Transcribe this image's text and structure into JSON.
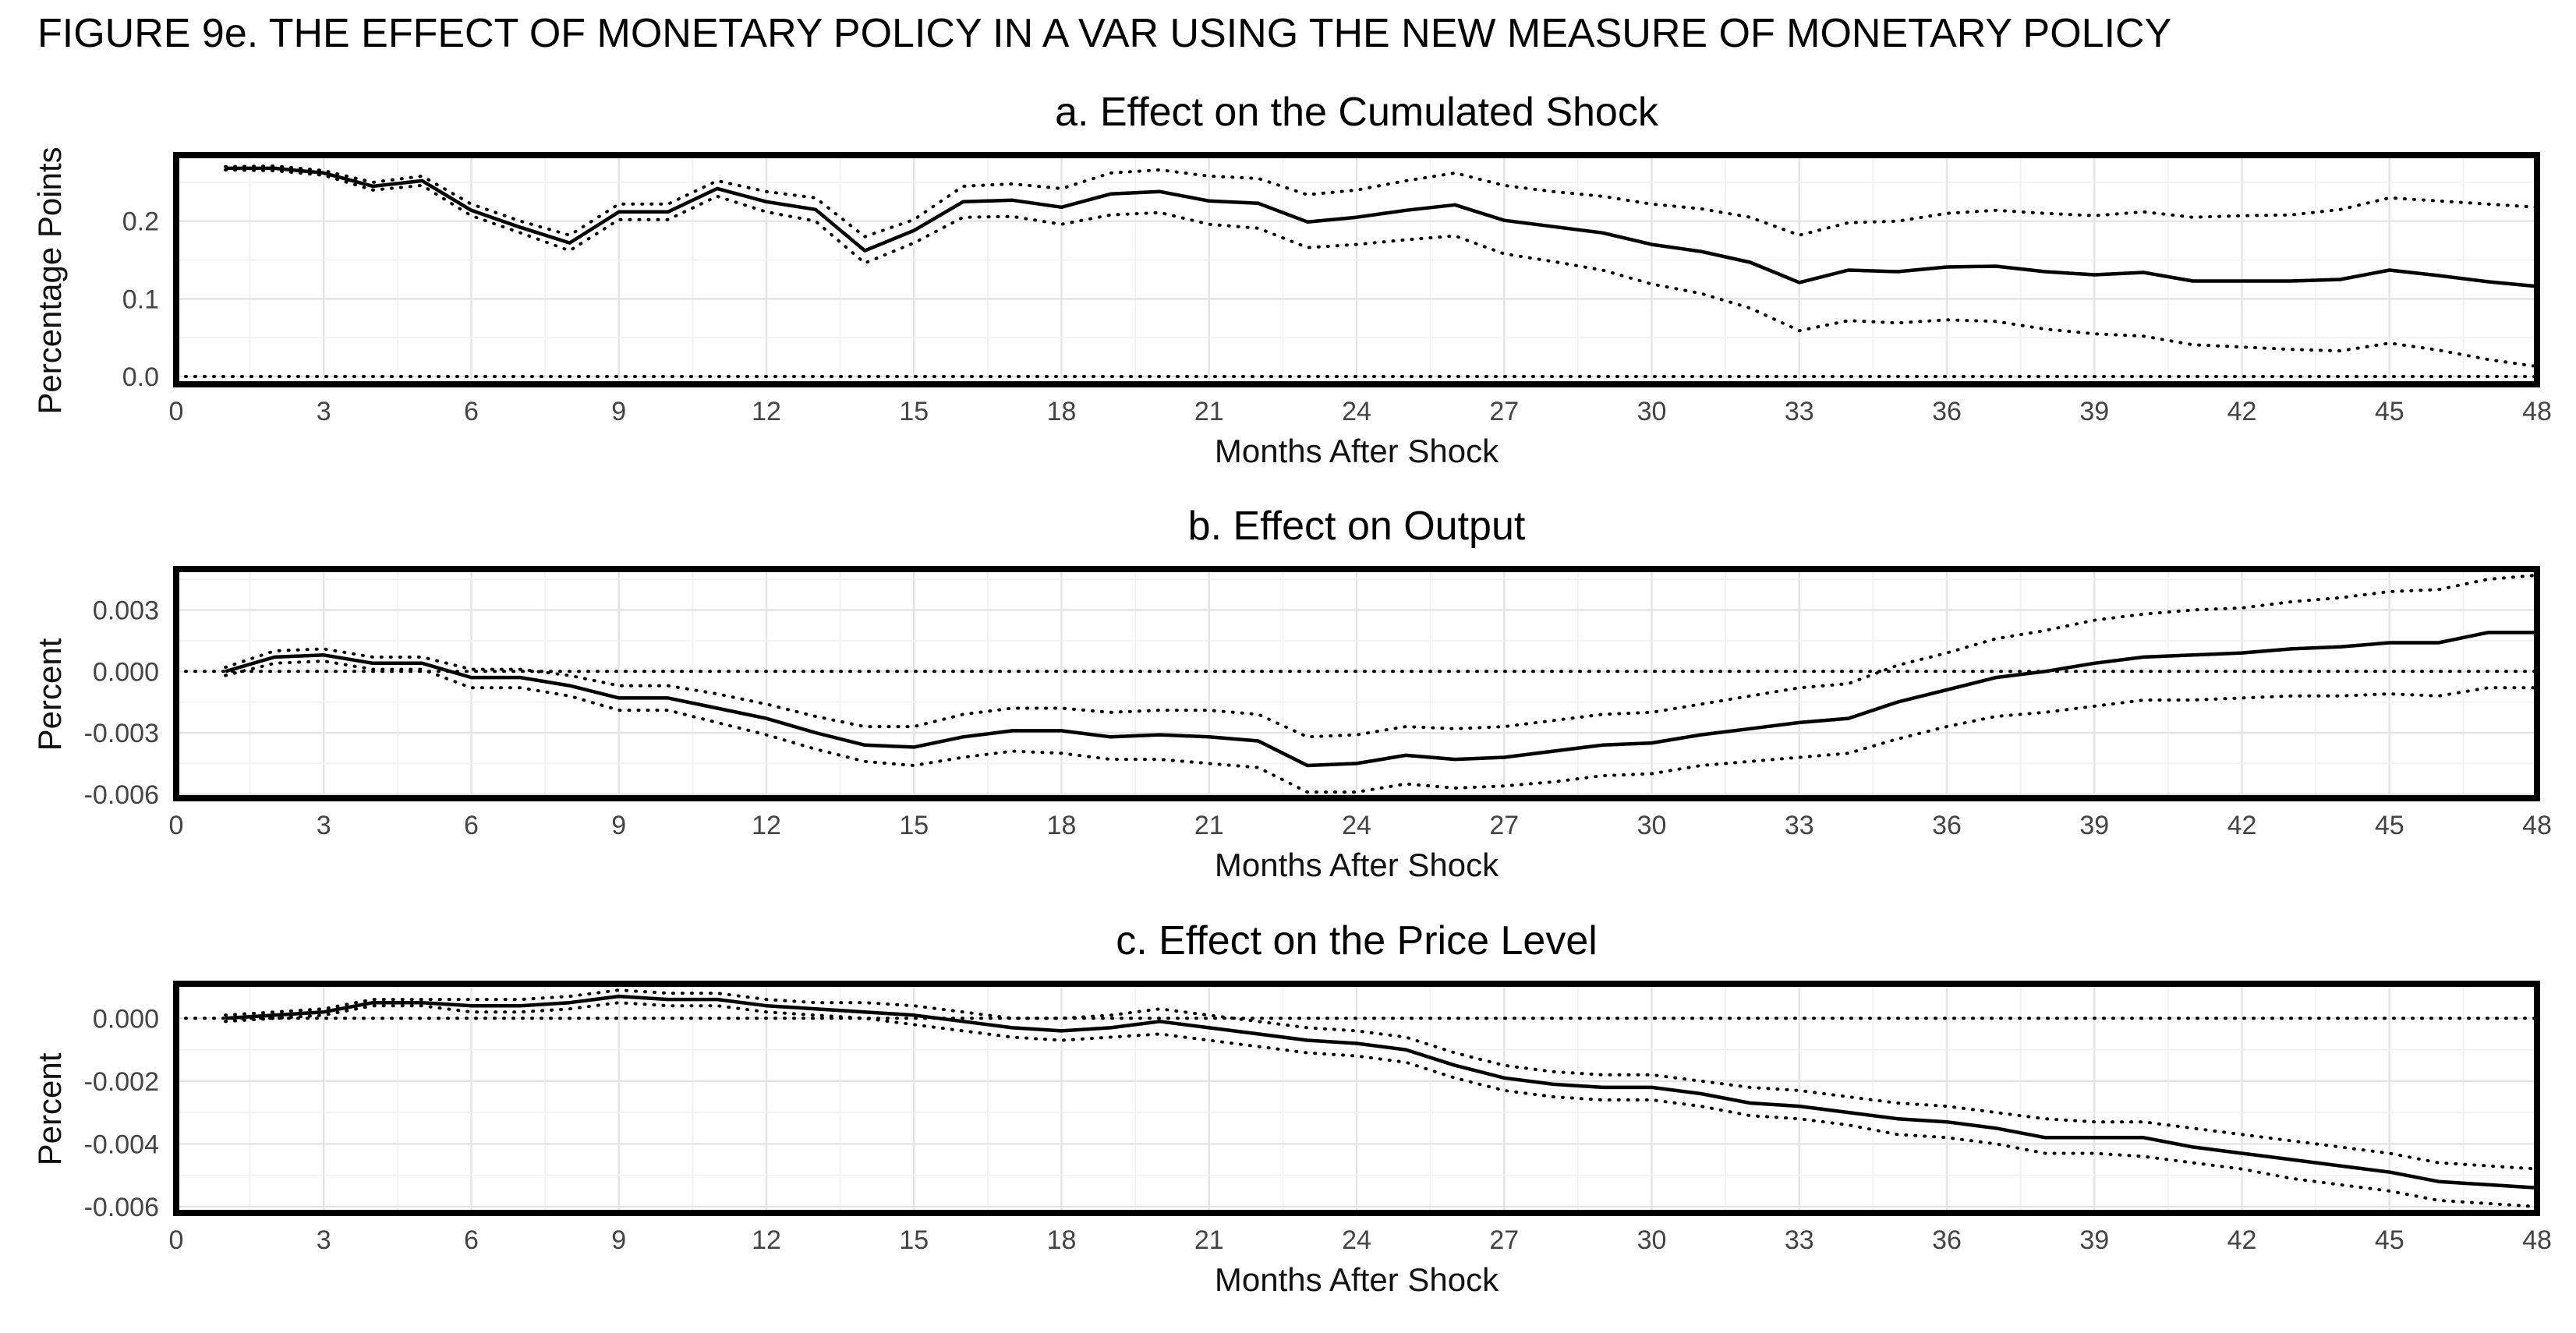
{
  "figure_title": "FIGURE 9e. THE EFFECT OF MONETARY POLICY IN A VAR USING THE NEW MEASURE OF MONETARY POLICY",
  "chart_data": [
    {
      "type": "line",
      "title": "a. Effect on the Cumulated Shock",
      "xlabel": "Months After Shock",
      "ylabel": "Percentage Points",
      "xlim": [
        0,
        48
      ],
      "ylim": [
        -0.01,
        0.285
      ],
      "xticks": [
        0,
        3,
        6,
        9,
        12,
        15,
        18,
        21,
        24,
        27,
        30,
        33,
        36,
        39,
        42,
        45,
        48
      ],
      "yticks": [
        0.0,
        0.1,
        0.2
      ],
      "ytick_labels": [
        "0.0",
        "0.1",
        "0.2"
      ],
      "grid": true,
      "zero_line": true,
      "x": [
        1,
        2,
        3,
        4,
        5,
        6,
        7,
        8,
        9,
        10,
        11,
        12,
        13,
        14,
        15,
        16,
        17,
        18,
        19,
        20,
        21,
        22,
        23,
        24,
        25,
        26,
        27,
        28,
        29,
        30,
        31,
        32,
        33,
        34,
        35,
        36,
        37,
        38,
        39,
        40,
        41,
        42,
        43,
        44,
        45,
        46,
        47,
        48
      ],
      "series": [
        {
          "role": "estimate",
          "values": [
            0.268,
            0.268,
            0.262,
            0.245,
            0.252,
            0.214,
            0.192,
            0.172,
            0.212,
            0.212,
            0.242,
            0.225,
            0.215,
            0.162,
            0.188,
            0.225,
            0.227,
            0.218,
            0.235,
            0.238,
            0.226,
            0.223,
            0.199,
            0.205,
            0.214,
            0.221,
            0.201,
            0.193,
            0.185,
            0.17,
            0.161,
            0.147,
            0.121,
            0.137,
            0.135,
            0.141,
            0.142,
            0.135,
            0.131,
            0.134,
            0.123,
            0.123,
            0.123,
            0.125,
            0.137,
            0.13,
            0.122,
            0.116
          ]
        },
        {
          "role": "upper band",
          "values": [
            0.27,
            0.271,
            0.265,
            0.25,
            0.258,
            0.222,
            0.2,
            0.182,
            0.222,
            0.222,
            0.252,
            0.238,
            0.23,
            0.18,
            0.202,
            0.245,
            0.248,
            0.242,
            0.262,
            0.266,
            0.258,
            0.255,
            0.234,
            0.24,
            0.252,
            0.262,
            0.246,
            0.238,
            0.232,
            0.222,
            0.216,
            0.205,
            0.182,
            0.198,
            0.2,
            0.21,
            0.214,
            0.21,
            0.207,
            0.212,
            0.205,
            0.207,
            0.208,
            0.215,
            0.23,
            0.226,
            0.222,
            0.218
          ]
        },
        {
          "role": "lower band",
          "values": [
            0.266,
            0.265,
            0.259,
            0.24,
            0.246,
            0.207,
            0.185,
            0.162,
            0.202,
            0.202,
            0.232,
            0.212,
            0.2,
            0.146,
            0.172,
            0.205,
            0.206,
            0.196,
            0.208,
            0.211,
            0.196,
            0.191,
            0.166,
            0.17,
            0.176,
            0.181,
            0.158,
            0.148,
            0.137,
            0.119,
            0.107,
            0.088,
            0.059,
            0.072,
            0.069,
            0.073,
            0.071,
            0.061,
            0.055,
            0.052,
            0.041,
            0.038,
            0.035,
            0.033,
            0.043,
            0.034,
            0.022,
            0.013
          ]
        }
      ]
    },
    {
      "type": "line",
      "title": "b. Effect on Output",
      "xlabel": "Months After Shock",
      "ylabel": "Percent",
      "xlim": [
        0,
        48
      ],
      "ylim": [
        -0.0062,
        0.005
      ],
      "xticks": [
        0,
        3,
        6,
        9,
        12,
        15,
        18,
        21,
        24,
        27,
        30,
        33,
        36,
        39,
        42,
        45,
        48
      ],
      "yticks": [
        0.003,
        0.0,
        -0.003,
        -0.006
      ],
      "ytick_labels": [
        "0.003",
        "0.000",
        "-0.003",
        "-0.006"
      ],
      "grid": true,
      "zero_line": true,
      "x": [
        1,
        2,
        3,
        4,
        5,
        6,
        7,
        8,
        9,
        10,
        11,
        12,
        13,
        14,
        15,
        16,
        17,
        18,
        19,
        20,
        21,
        22,
        23,
        24,
        25,
        26,
        27,
        28,
        29,
        30,
        31,
        32,
        33,
        34,
        35,
        36,
        37,
        38,
        39,
        40,
        41,
        42,
        43,
        44,
        45,
        46,
        47,
        48
      ],
      "series": [
        {
          "role": "estimate",
          "values": [
            0.0,
            0.0007,
            0.0008,
            0.0004,
            0.0004,
            -0.0003,
            -0.0003,
            -0.0007,
            -0.0013,
            -0.0013,
            -0.0018,
            -0.0023,
            -0.003,
            -0.0036,
            -0.0037,
            -0.0032,
            -0.0029,
            -0.0029,
            -0.0032,
            -0.0031,
            -0.0032,
            -0.0034,
            -0.0046,
            -0.0045,
            -0.0041,
            -0.0043,
            -0.0042,
            -0.0039,
            -0.0036,
            -0.0035,
            -0.0031,
            -0.0028,
            -0.0025,
            -0.0023,
            -0.0015,
            -0.0009,
            -0.0003,
            0.0,
            0.0004,
            0.0007,
            0.0008,
            0.0009,
            0.0011,
            0.0012,
            0.0014,
            0.0014,
            0.0019,
            0.0019
          ]
        },
        {
          "role": "upper band",
          "values": [
            0.0002,
            0.001,
            0.0011,
            0.0007,
            0.0007,
            0.0001,
            0.0001,
            -0.0002,
            -0.0007,
            -0.0007,
            -0.0011,
            -0.0016,
            -0.0022,
            -0.0027,
            -0.0027,
            -0.0021,
            -0.0018,
            -0.0018,
            -0.002,
            -0.0019,
            -0.0019,
            -0.0021,
            -0.0032,
            -0.0031,
            -0.0027,
            -0.0028,
            -0.0027,
            -0.0024,
            -0.0021,
            -0.002,
            -0.0016,
            -0.0012,
            -0.0008,
            -0.0006,
            0.0003,
            0.0009,
            0.0016,
            0.002,
            0.0025,
            0.0028,
            0.003,
            0.0031,
            0.0034,
            0.0036,
            0.0039,
            0.004,
            0.0045,
            0.0047
          ]
        },
        {
          "role": "lower band",
          "values": [
            -0.0002,
            0.0004,
            0.0005,
            0.0001,
            0.0001,
            -0.0008,
            -0.0008,
            -0.0012,
            -0.0019,
            -0.0019,
            -0.0025,
            -0.0031,
            -0.0038,
            -0.0044,
            -0.0046,
            -0.0042,
            -0.0039,
            -0.004,
            -0.0043,
            -0.0043,
            -0.0045,
            -0.0047,
            -0.0059,
            -0.0059,
            -0.0055,
            -0.0057,
            -0.0056,
            -0.0054,
            -0.0051,
            -0.005,
            -0.0046,
            -0.0044,
            -0.0042,
            -0.004,
            -0.0033,
            -0.0027,
            -0.0022,
            -0.002,
            -0.0017,
            -0.0014,
            -0.0014,
            -0.0013,
            -0.0012,
            -0.0012,
            -0.0011,
            -0.0012,
            -0.0008,
            -0.0008
          ]
        }
      ]
    },
    {
      "type": "line",
      "title": "c. Effect on the Price Level",
      "xlabel": "Months After Shock",
      "ylabel": "Percent",
      "xlim": [
        0,
        48
      ],
      "ylim": [
        -0.0062,
        0.0011
      ],
      "xticks": [
        0,
        3,
        6,
        9,
        12,
        15,
        18,
        21,
        24,
        27,
        30,
        33,
        36,
        39,
        42,
        45,
        48
      ],
      "yticks": [
        0.0,
        -0.002,
        -0.004,
        -0.006
      ],
      "ytick_labels": [
        "0.000",
        "-0.002",
        "-0.004",
        "-0.006"
      ],
      "grid": true,
      "zero_line": true,
      "x": [
        1,
        2,
        3,
        4,
        5,
        6,
        7,
        8,
        9,
        10,
        11,
        12,
        13,
        14,
        15,
        16,
        17,
        18,
        19,
        20,
        21,
        22,
        23,
        24,
        25,
        26,
        27,
        28,
        29,
        30,
        31,
        32,
        33,
        34,
        35,
        36,
        37,
        38,
        39,
        40,
        41,
        42,
        43,
        44,
        45,
        46,
        47,
        48
      ],
      "series": [
        {
          "role": "estimate",
          "values": [
            0.0,
            0.0001,
            0.0002,
            0.0005,
            0.0005,
            0.0004,
            0.0004,
            0.0005,
            0.0007,
            0.0006,
            0.0006,
            0.0004,
            0.0003,
            0.0002,
            0.0001,
            -0.0001,
            -0.0003,
            -0.0004,
            -0.0003,
            -0.0001,
            -0.0003,
            -0.0005,
            -0.0007,
            -0.0008,
            -0.001,
            -0.0015,
            -0.0019,
            -0.0021,
            -0.0022,
            -0.0022,
            -0.0024,
            -0.0027,
            -0.0028,
            -0.003,
            -0.0032,
            -0.0033,
            -0.0035,
            -0.0038,
            -0.0038,
            -0.0038,
            -0.0041,
            -0.0043,
            -0.0045,
            -0.0047,
            -0.0049,
            -0.0052,
            -0.0053,
            -0.0054
          ]
        },
        {
          "role": "upper band",
          "values": [
            0.0001,
            0.0002,
            0.0003,
            0.0006,
            0.0006,
            0.0006,
            0.0006,
            0.0007,
            0.0009,
            0.0008,
            0.0008,
            0.0006,
            0.0005,
            0.0005,
            0.0004,
            0.0002,
            0.0,
            0.0,
            0.0001,
            0.0003,
            0.0001,
            -0.0001,
            -0.0003,
            -0.0004,
            -0.0006,
            -0.0011,
            -0.0015,
            -0.0017,
            -0.0018,
            -0.0018,
            -0.002,
            -0.0022,
            -0.0023,
            -0.0025,
            -0.0027,
            -0.0028,
            -0.003,
            -0.0032,
            -0.0033,
            -0.0033,
            -0.0035,
            -0.0037,
            -0.0039,
            -0.0041,
            -0.0043,
            -0.0046,
            -0.0047,
            -0.0048
          ]
        },
        {
          "role": "lower band",
          "values": [
            -0.0001,
            0.0,
            0.0001,
            0.0004,
            0.0004,
            0.0002,
            0.0002,
            0.0003,
            0.0005,
            0.0004,
            0.0004,
            0.0002,
            0.0001,
            0.0,
            -0.0002,
            -0.0004,
            -0.0006,
            -0.0007,
            -0.0006,
            -0.0005,
            -0.0007,
            -0.0009,
            -0.0011,
            -0.0012,
            -0.0014,
            -0.0019,
            -0.0023,
            -0.0025,
            -0.0026,
            -0.0026,
            -0.0028,
            -0.0031,
            -0.0032,
            -0.0034,
            -0.0037,
            -0.0038,
            -0.004,
            -0.0043,
            -0.0043,
            -0.0044,
            -0.0046,
            -0.0048,
            -0.0051,
            -0.0053,
            -0.0055,
            -0.0058,
            -0.0059,
            -0.006
          ]
        }
      ]
    }
  ]
}
